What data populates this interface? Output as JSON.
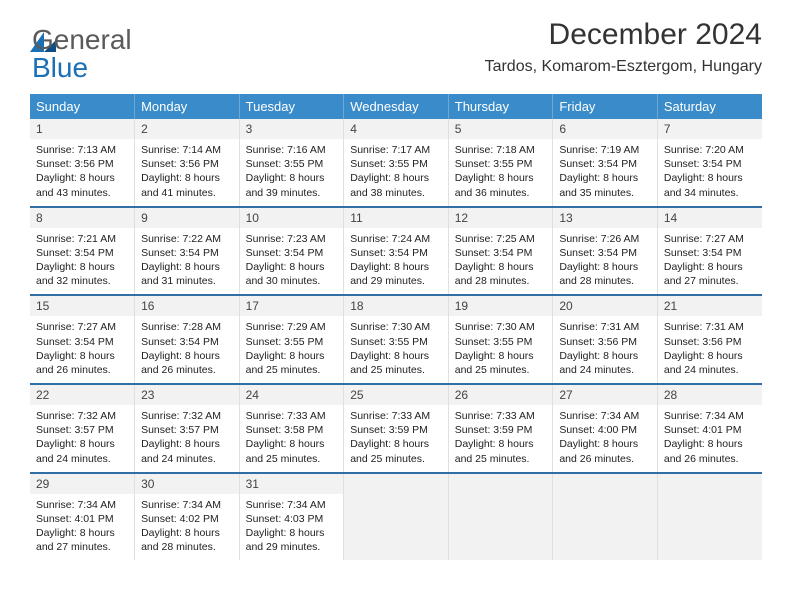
{
  "logo": {
    "word1": "General",
    "word2": "Blue"
  },
  "title": {
    "month": "December 2024",
    "location": "Tardos, Komarom-Esztergom, Hungary"
  },
  "colors": {
    "header_bg": "#3a8bc9",
    "sep_color": "#2f6fa3",
    "daynum_bg": "#f2f2f2",
    "logo_gray": "#5a5a5a",
    "logo_blue": "#1a6fb5"
  },
  "typography": {
    "month_size": 30,
    "location_size": 16,
    "head_size": 13,
    "body_size": 10.5
  },
  "days": [
    "Sunday",
    "Monday",
    "Tuesday",
    "Wednesday",
    "Thursday",
    "Friday",
    "Saturday"
  ],
  "weeks": [
    [
      {
        "n": "1",
        "sr": "7:13 AM",
        "ss": "3:56 PM",
        "dl": "8 hours and 43 minutes."
      },
      {
        "n": "2",
        "sr": "7:14 AM",
        "ss": "3:56 PM",
        "dl": "8 hours and 41 minutes."
      },
      {
        "n": "3",
        "sr": "7:16 AM",
        "ss": "3:55 PM",
        "dl": "8 hours and 39 minutes."
      },
      {
        "n": "4",
        "sr": "7:17 AM",
        "ss": "3:55 PM",
        "dl": "8 hours and 38 minutes."
      },
      {
        "n": "5",
        "sr": "7:18 AM",
        "ss": "3:55 PM",
        "dl": "8 hours and 36 minutes."
      },
      {
        "n": "6",
        "sr": "7:19 AM",
        "ss": "3:54 PM",
        "dl": "8 hours and 35 minutes."
      },
      {
        "n": "7",
        "sr": "7:20 AM",
        "ss": "3:54 PM",
        "dl": "8 hours and 34 minutes."
      }
    ],
    [
      {
        "n": "8",
        "sr": "7:21 AM",
        "ss": "3:54 PM",
        "dl": "8 hours and 32 minutes."
      },
      {
        "n": "9",
        "sr": "7:22 AM",
        "ss": "3:54 PM",
        "dl": "8 hours and 31 minutes."
      },
      {
        "n": "10",
        "sr": "7:23 AM",
        "ss": "3:54 PM",
        "dl": "8 hours and 30 minutes."
      },
      {
        "n": "11",
        "sr": "7:24 AM",
        "ss": "3:54 PM",
        "dl": "8 hours and 29 minutes."
      },
      {
        "n": "12",
        "sr": "7:25 AM",
        "ss": "3:54 PM",
        "dl": "8 hours and 28 minutes."
      },
      {
        "n": "13",
        "sr": "7:26 AM",
        "ss": "3:54 PM",
        "dl": "8 hours and 28 minutes."
      },
      {
        "n": "14",
        "sr": "7:27 AM",
        "ss": "3:54 PM",
        "dl": "8 hours and 27 minutes."
      }
    ],
    [
      {
        "n": "15",
        "sr": "7:27 AM",
        "ss": "3:54 PM",
        "dl": "8 hours and 26 minutes."
      },
      {
        "n": "16",
        "sr": "7:28 AM",
        "ss": "3:54 PM",
        "dl": "8 hours and 26 minutes."
      },
      {
        "n": "17",
        "sr": "7:29 AM",
        "ss": "3:55 PM",
        "dl": "8 hours and 25 minutes."
      },
      {
        "n": "18",
        "sr": "7:30 AM",
        "ss": "3:55 PM",
        "dl": "8 hours and 25 minutes."
      },
      {
        "n": "19",
        "sr": "7:30 AM",
        "ss": "3:55 PM",
        "dl": "8 hours and 25 minutes."
      },
      {
        "n": "20",
        "sr": "7:31 AM",
        "ss": "3:56 PM",
        "dl": "8 hours and 24 minutes."
      },
      {
        "n": "21",
        "sr": "7:31 AM",
        "ss": "3:56 PM",
        "dl": "8 hours and 24 minutes."
      }
    ],
    [
      {
        "n": "22",
        "sr": "7:32 AM",
        "ss": "3:57 PM",
        "dl": "8 hours and 24 minutes."
      },
      {
        "n": "23",
        "sr": "7:32 AM",
        "ss": "3:57 PM",
        "dl": "8 hours and 24 minutes."
      },
      {
        "n": "24",
        "sr": "7:33 AM",
        "ss": "3:58 PM",
        "dl": "8 hours and 25 minutes."
      },
      {
        "n": "25",
        "sr": "7:33 AM",
        "ss": "3:59 PM",
        "dl": "8 hours and 25 minutes."
      },
      {
        "n": "26",
        "sr": "7:33 AM",
        "ss": "3:59 PM",
        "dl": "8 hours and 25 minutes."
      },
      {
        "n": "27",
        "sr": "7:34 AM",
        "ss": "4:00 PM",
        "dl": "8 hours and 26 minutes."
      },
      {
        "n": "28",
        "sr": "7:34 AM",
        "ss": "4:01 PM",
        "dl": "8 hours and 26 minutes."
      }
    ],
    [
      {
        "n": "29",
        "sr": "7:34 AM",
        "ss": "4:01 PM",
        "dl": "8 hours and 27 minutes."
      },
      {
        "n": "30",
        "sr": "7:34 AM",
        "ss": "4:02 PM",
        "dl": "8 hours and 28 minutes."
      },
      {
        "n": "31",
        "sr": "7:34 AM",
        "ss": "4:03 PM",
        "dl": "8 hours and 29 minutes."
      },
      null,
      null,
      null,
      null
    ]
  ],
  "labels": {
    "sunrise": "Sunrise: ",
    "sunset": "Sunset: ",
    "daylight": "Daylight: "
  }
}
